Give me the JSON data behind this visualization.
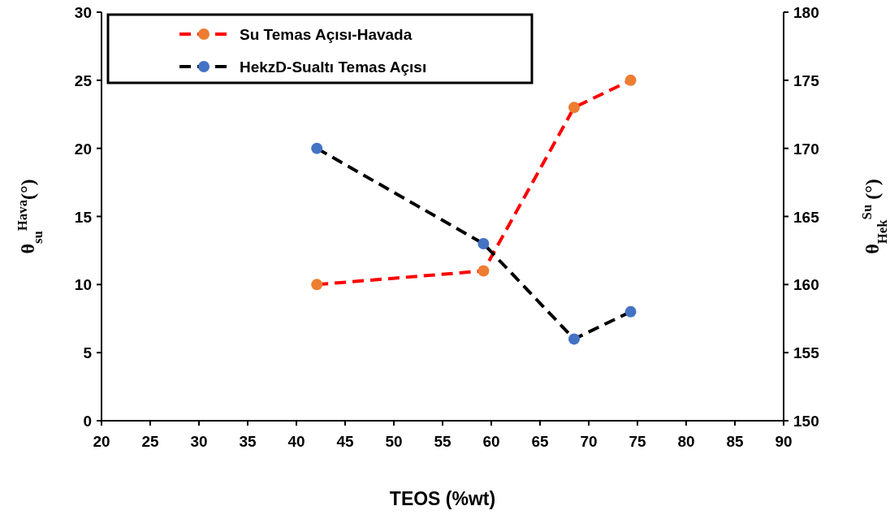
{
  "chart_data": {
    "type": "line",
    "xlabel": "TEOS (%wt)",
    "ylabel": "θ$_{su}$$^{Hava}$(°)",
    "y2label": "θ$_{Hek}$$^{Su}$ (°)",
    "xlim": [
      20,
      90
    ],
    "xticks": [
      20,
      25,
      30,
      35,
      40,
      45,
      50,
      55,
      60,
      65,
      70,
      75,
      80,
      85,
      90
    ],
    "ylim": [
      0,
      30
    ],
    "yticks": [
      0,
      5,
      10,
      15,
      20,
      25,
      30
    ],
    "y2lim": [
      150,
      180
    ],
    "y2ticks": [
      150,
      155,
      160,
      165,
      170,
      175,
      180
    ],
    "grid": false,
    "legend": "top left",
    "marker": "circle",
    "line_style": "dashed",
    "series": [
      {
        "name": "Su Temas Açısı-Havada",
        "color": "#ed7d31",
        "x": [
          42.1,
          59.2,
          68.5,
          74.3
        ],
        "values": [
          10,
          11,
          23,
          25
        ]
      },
      {
        "name": "HekzD-Sualtı Temas Açısı",
        "color": "#4472c4",
        "axis": "y2",
        "x": [
          42.1,
          59.2,
          68.5,
          74.3
        ],
        "values": [
          170,
          163,
          156,
          158
        ]
      }
    ]
  }
}
